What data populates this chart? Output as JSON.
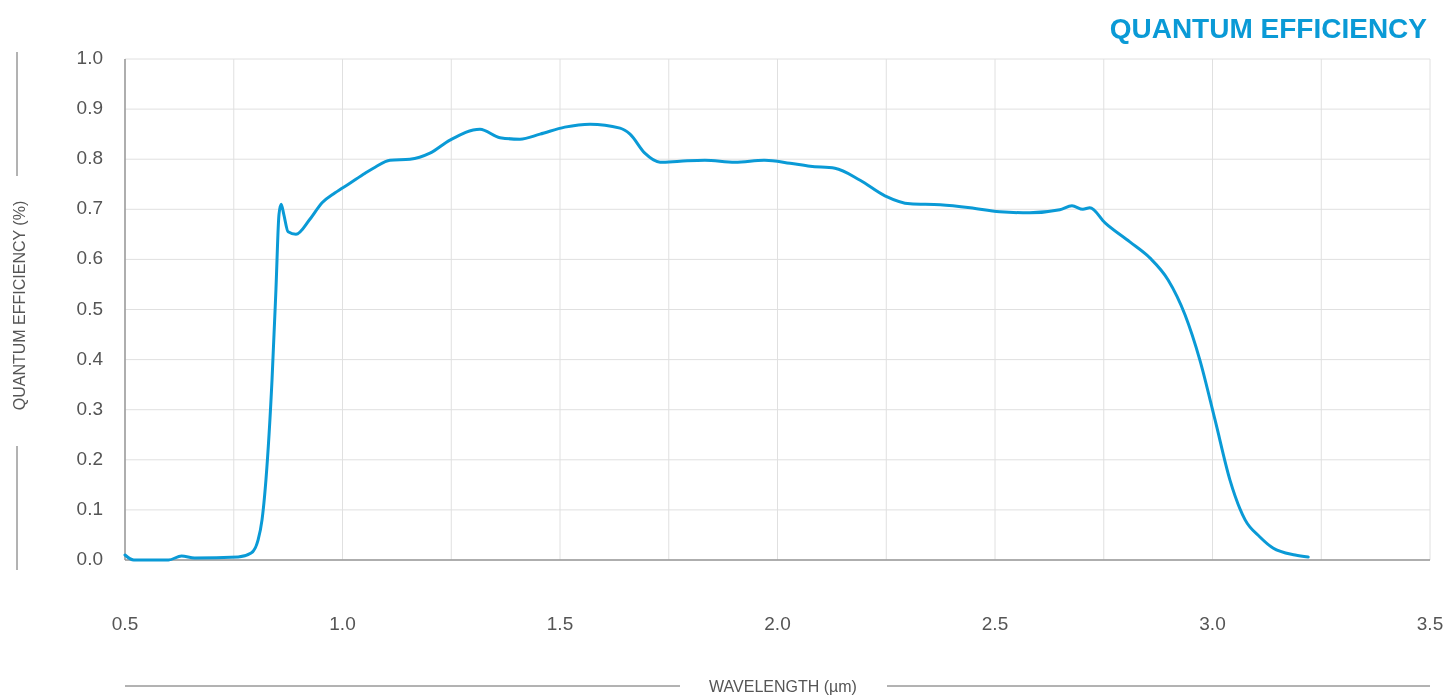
{
  "chart_data": {
    "type": "line",
    "title": "QUANTUM EFFICIENCY",
    "xlabel": "WAVELENGTH (µm)",
    "ylabel": "QUANTUM EFFICIENCY (%)",
    "x": [
      0.5,
      0.52,
      0.6,
      0.63,
      0.66,
      0.76,
      0.79,
      0.806,
      0.815,
      0.824,
      0.838,
      0.847,
      0.854,
      0.859,
      0.865,
      0.875,
      0.893,
      0.925,
      0.953,
      0.983,
      1.017,
      1.052,
      1.075,
      1.109,
      1.155,
      1.201,
      1.247,
      1.316,
      1.362,
      1.408,
      1.454,
      1.511,
      1.569,
      1.638,
      1.661,
      1.695,
      1.73,
      1.776,
      1.833,
      1.902,
      1.971,
      2.029,
      2.075,
      2.132,
      2.19,
      2.247,
      2.305,
      2.374,
      2.443,
      2.511,
      2.58,
      2.649,
      2.677,
      2.702,
      2.718,
      2.753,
      2.81,
      2.856,
      2.898,
      2.937,
      2.971,
      3.006,
      3.04,
      3.075,
      3.109,
      3.139,
      3.19,
      3.22
    ],
    "series": [
      {
        "color": "#0a9ad6",
        "values": [
          0.01,
          0.0,
          0.0,
          0.008,
          0.004,
          0.006,
          0.014,
          0.04,
          0.08,
          0.16,
          0.36,
          0.54,
          0.69,
          0.71,
          0.69,
          0.655,
          0.65,
          0.68,
          0.713,
          0.733,
          0.752,
          0.772,
          0.784,
          0.798,
          0.8,
          0.812,
          0.838,
          0.86,
          0.843,
          0.84,
          0.85,
          0.864,
          0.87,
          0.862,
          0.85,
          0.812,
          0.794,
          0.796,
          0.798,
          0.794,
          0.798,
          0.792,
          0.786,
          0.782,
          0.758,
          0.727,
          0.711,
          0.709,
          0.703,
          0.695,
          0.693,
          0.699,
          0.707,
          0.7,
          0.703,
          0.673,
          0.635,
          0.603,
          0.559,
          0.489,
          0.399,
          0.279,
          0.16,
          0.08,
          0.046,
          0.024,
          0.01,
          0.006
        ]
      }
    ],
    "xlim": [
      0.5,
      3.5
    ],
    "xticks": [
      {
        "value": 0.5,
        "label": "0.5"
      },
      {
        "value": 0.75,
        "label": null
      },
      {
        "value": 1.0,
        "label": "1.0"
      },
      {
        "value": 1.25,
        "label": null
      },
      {
        "value": 1.5,
        "label": "1.5"
      },
      {
        "value": 1.75,
        "label": null
      },
      {
        "value": 2.0,
        "label": "2.0"
      },
      {
        "value": 2.25,
        "label": null
      },
      {
        "value": 2.5,
        "label": "2.5"
      },
      {
        "value": 2.75,
        "label": null
      },
      {
        "value": 3.0,
        "label": "3.0"
      },
      {
        "value": 3.25,
        "label": null
      },
      {
        "value": 3.5,
        "label": "3.5"
      }
    ],
    "ylim": [
      0,
      1
    ],
    "yticks": [
      {
        "value": 0,
        "label": "0.0"
      },
      {
        "value": 0.1,
        "label": "0.1"
      },
      {
        "value": 0.2,
        "label": "0.2"
      },
      {
        "value": 0.3,
        "label": "0.3"
      },
      {
        "value": 0.4,
        "label": "0.4"
      },
      {
        "value": 0.5,
        "label": "0.5"
      },
      {
        "value": 0.6,
        "label": "0.6"
      },
      {
        "value": 0.7,
        "label": "0.7"
      },
      {
        "value": 0.8,
        "label": "0.8"
      },
      {
        "value": 0.9,
        "label": "0.9"
      },
      {
        "value": 1.0,
        "label": "1.0"
      }
    ],
    "grid": true,
    "marker": "none",
    "line_style": "solid"
  }
}
